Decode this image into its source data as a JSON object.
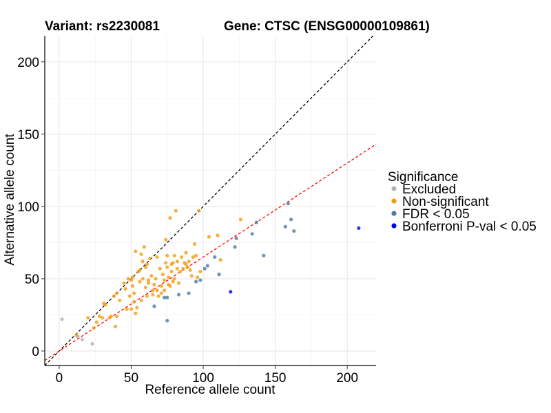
{
  "chart_data": {
    "type": "scatter",
    "title_left": "Variant: rs2230081",
    "title_right": "Gene: CTSC (ENSG00000109861)",
    "xlabel": "Reference allele count",
    "ylabel": "Alternative allele count",
    "xlim": [
      -10,
      220
    ],
    "ylim": [
      -10,
      218
    ],
    "xticks": [
      0,
      50,
      100,
      150,
      200
    ],
    "yticks": [
      0,
      50,
      100,
      150,
      200
    ],
    "grid": true,
    "reference_lines": [
      {
        "name": "y = x",
        "slope": 1.0,
        "intercept": 0,
        "color": "#000000",
        "dashed": true
      },
      {
        "name": "fitted",
        "slope": 0.65,
        "intercept": 0,
        "color": "#ff0000",
        "dashed": true
      }
    ],
    "legend": {
      "title": "Significance",
      "position": "right",
      "entries": [
        {
          "label": "Excluded",
          "color": "#b3b3b3"
        },
        {
          "label": "Non-significant",
          "color": "#f39c12"
        },
        {
          "label": "FDR < 0.05",
          "color": "#4a78a8"
        },
        {
          "label": "Bonferroni P-val < 0.05",
          "color": "#0000ee"
        }
      ]
    },
    "series": [
      {
        "name": "Excluded",
        "color": "#b3b3b3",
        "points": [
          [
            2,
            22
          ],
          [
            16,
            8
          ],
          [
            23,
            5
          ],
          [
            13,
            10
          ]
        ]
      },
      {
        "name": "Non-significant",
        "color": "#f39c12",
        "points": [
          [
            12,
            11
          ],
          [
            20,
            23
          ],
          [
            24,
            16
          ],
          [
            26,
            20
          ],
          [
            28,
            24
          ],
          [
            30,
            23
          ],
          [
            31,
            33
          ],
          [
            32,
            32
          ],
          [
            35,
            23
          ],
          [
            36,
            24
          ],
          [
            38,
            38
          ],
          [
            39,
            17
          ],
          [
            40,
            40
          ],
          [
            40,
            24
          ],
          [
            42,
            35
          ],
          [
            45,
            47
          ],
          [
            46,
            43
          ],
          [
            47,
            29
          ],
          [
            48,
            50
          ],
          [
            49,
            38
          ],
          [
            50,
            29
          ],
          [
            50,
            49
          ],
          [
            51,
            51
          ],
          [
            51,
            45
          ],
          [
            52,
            40
          ],
          [
            52,
            34
          ],
          [
            53,
            26
          ],
          [
            53,
            69
          ],
          [
            54,
            30
          ],
          [
            55,
            55
          ],
          [
            56,
            48
          ],
          [
            56,
            56
          ],
          [
            57,
            35
          ],
          [
            57,
            67
          ],
          [
            58,
            50
          ],
          [
            58,
            62
          ],
          [
            59,
            72
          ],
          [
            60,
            44
          ],
          [
            60,
            58
          ],
          [
            61,
            38
          ],
          [
            61,
            60
          ],
          [
            62,
            49
          ],
          [
            62,
            47
          ],
          [
            63,
            64
          ],
          [
            64,
            52
          ],
          [
            65,
            42
          ],
          [
            65,
            39
          ],
          [
            66,
            46
          ],
          [
            67,
            50
          ],
          [
            68,
            42
          ],
          [
            68,
            65
          ],
          [
            69,
            38
          ],
          [
            70,
            57
          ],
          [
            71,
            45
          ],
          [
            71,
            40
          ],
          [
            72,
            53
          ],
          [
            73,
            49
          ],
          [
            73,
            42
          ],
          [
            74,
            77
          ],
          [
            74,
            61
          ],
          [
            75,
            58
          ],
          [
            75,
            66
          ],
          [
            76,
            51
          ],
          [
            76,
            46
          ],
          [
            77,
            45
          ],
          [
            77,
            92
          ],
          [
            78,
            60
          ],
          [
            78,
            55
          ],
          [
            79,
            48
          ],
          [
            79,
            61
          ],
          [
            80,
            50
          ],
          [
            80,
            66
          ],
          [
            81,
            97
          ],
          [
            82,
            62
          ],
          [
            82,
            57
          ],
          [
            83,
            47
          ],
          [
            84,
            55
          ],
          [
            85,
            65
          ],
          [
            86,
            57
          ],
          [
            87,
            61
          ],
          [
            88,
            60
          ],
          [
            88,
            68
          ],
          [
            89,
            58
          ],
          [
            90,
            62
          ],
          [
            91,
            56
          ],
          [
            92,
            52
          ],
          [
            93,
            65
          ],
          [
            94,
            74
          ],
          [
            95,
            66
          ],
          [
            96,
            51
          ],
          [
            97,
            97
          ],
          [
            98,
            55
          ],
          [
            104,
            79
          ],
          [
            110,
            80
          ],
          [
            112,
            63
          ],
          [
            126,
            91
          ]
        ]
      },
      {
        "name": "FDR < 0.05",
        "color": "#4a78a8",
        "points": [
          [
            66,
            31
          ],
          [
            73,
            37
          ],
          [
            75,
            37
          ],
          [
            75,
            21
          ],
          [
            83,
            39
          ],
          [
            90,
            40
          ],
          [
            95,
            48
          ],
          [
            98,
            49
          ],
          [
            101,
            57
          ],
          [
            103,
            59
          ],
          [
            108,
            65
          ],
          [
            111,
            53
          ],
          [
            122,
            72
          ],
          [
            123,
            78
          ],
          [
            134,
            81
          ],
          [
            137,
            89
          ],
          [
            142,
            66
          ],
          [
            157,
            86
          ],
          [
            159,
            102
          ],
          [
            161,
            91
          ],
          [
            163,
            83
          ]
        ]
      },
      {
        "name": "Bonferroni P-val < 0.05",
        "color": "#0000ee",
        "points": [
          [
            119,
            41
          ],
          [
            208,
            85
          ]
        ]
      }
    ]
  }
}
